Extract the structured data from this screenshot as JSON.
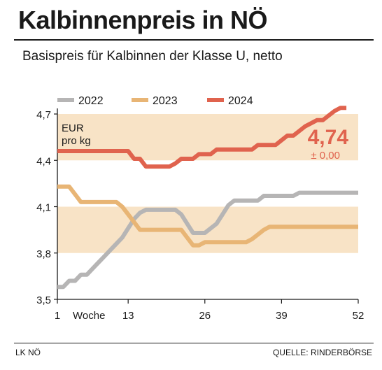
{
  "header": {
    "title": "Kalbinnenpreis in NÖ",
    "subtitle": "Basispreis für Kalbinnen der Klasse U, netto"
  },
  "footer": {
    "source_left": "LK NÖ",
    "source_right": "QUELLE: RINDERBÖRSE"
  },
  "colors": {
    "band": "#f8e3c6",
    "series_2022": "#b6b5b5",
    "series_2023": "#e8b575",
    "series_2024": "#e0634e",
    "current_value": "#e0634e"
  },
  "chart_data": {
    "type": "line",
    "unit_label": [
      "EUR",
      "pro kg"
    ],
    "xlabel": "Woche",
    "xlim": [
      1,
      52
    ],
    "ylim": [
      3.5,
      4.7
    ],
    "x_ticks": [
      1,
      13,
      26,
      39,
      52
    ],
    "y_ticks": [
      3.5,
      3.8,
      4.1,
      4.4,
      4.7
    ],
    "y_tick_labels": [
      "3,5",
      "3,8",
      "4,1",
      "4,4",
      "4,7"
    ],
    "shaded_bands": [
      [
        3.8,
        4.1
      ],
      [
        4.4,
        4.7
      ]
    ],
    "grid": false,
    "legend_position": "top",
    "current_value": {
      "label": "4,74",
      "change": "± 0,00"
    },
    "series": [
      {
        "name": "2022",
        "color": "#b6b5b5",
        "x": [
          1,
          2,
          3,
          4,
          5,
          6,
          7,
          8,
          9,
          10,
          11,
          12,
          13,
          14,
          15,
          16,
          17,
          18,
          19,
          20,
          21,
          22,
          23,
          24,
          25,
          26,
          27,
          28,
          29,
          30,
          31,
          32,
          33,
          34,
          35,
          36,
          37,
          38,
          39,
          40,
          41,
          42,
          43,
          44,
          45,
          46,
          47,
          48,
          49,
          50,
          51,
          52
        ],
        "values": [
          3.58,
          3.58,
          3.62,
          3.62,
          3.66,
          3.66,
          3.7,
          3.74,
          3.78,
          3.82,
          3.86,
          3.9,
          3.96,
          4.02,
          4.06,
          4.08,
          4.08,
          4.08,
          4.08,
          4.08,
          4.08,
          4.05,
          3.99,
          3.93,
          3.93,
          3.93,
          3.96,
          3.99,
          4.05,
          4.11,
          4.14,
          4.14,
          4.14,
          4.14,
          4.14,
          4.17,
          4.17,
          4.17,
          4.17,
          4.17,
          4.17,
          4.19,
          4.19,
          4.19,
          4.19,
          4.19,
          4.19,
          4.19,
          4.19,
          4.19,
          4.19,
          4.19
        ]
      },
      {
        "name": "2023",
        "color": "#e8b575",
        "x": [
          1,
          2,
          3,
          4,
          5,
          6,
          7,
          8,
          9,
          10,
          11,
          12,
          13,
          14,
          15,
          16,
          17,
          18,
          19,
          20,
          21,
          22,
          23,
          24,
          25,
          26,
          27,
          28,
          29,
          30,
          31,
          32,
          33,
          34,
          35,
          36,
          37,
          38,
          39,
          40,
          41,
          42,
          43,
          44,
          45,
          46,
          47,
          48,
          49,
          50,
          51,
          52
        ],
        "values": [
          4.23,
          4.23,
          4.23,
          4.18,
          4.13,
          4.13,
          4.13,
          4.13,
          4.13,
          4.13,
          4.13,
          4.1,
          4.05,
          4.0,
          3.95,
          3.95,
          3.95,
          3.95,
          3.95,
          3.95,
          3.95,
          3.95,
          3.9,
          3.85,
          3.85,
          3.87,
          3.87,
          3.87,
          3.87,
          3.87,
          3.87,
          3.87,
          3.87,
          3.89,
          3.92,
          3.95,
          3.97,
          3.97,
          3.97,
          3.97,
          3.97,
          3.97,
          3.97,
          3.97,
          3.97,
          3.97,
          3.97,
          3.97,
          3.97,
          3.97,
          3.97,
          3.97
        ]
      },
      {
        "name": "2024",
        "color": "#e0634e",
        "x": [
          1,
          2,
          3,
          4,
          5,
          6,
          7,
          8,
          9,
          10,
          11,
          12,
          13,
          14,
          15,
          16,
          17,
          18,
          19,
          20,
          21,
          22,
          23,
          24,
          25,
          26,
          27,
          28,
          29,
          30,
          31,
          32,
          33,
          34,
          35,
          36,
          37,
          38,
          39,
          40,
          41,
          42,
          43,
          44,
          45,
          46,
          47,
          48,
          49,
          50
        ],
        "values": [
          4.46,
          4.46,
          4.46,
          4.46,
          4.46,
          4.46,
          4.46,
          4.46,
          4.46,
          4.46,
          4.46,
          4.46,
          4.46,
          4.41,
          4.41,
          4.36,
          4.36,
          4.36,
          4.36,
          4.36,
          4.38,
          4.41,
          4.41,
          4.41,
          4.44,
          4.44,
          4.44,
          4.47,
          4.47,
          4.47,
          4.47,
          4.47,
          4.47,
          4.47,
          4.5,
          4.5,
          4.5,
          4.5,
          4.53,
          4.56,
          4.56,
          4.59,
          4.62,
          4.64,
          4.66,
          4.66,
          4.69,
          4.72,
          4.74,
          4.74
        ]
      }
    ]
  }
}
